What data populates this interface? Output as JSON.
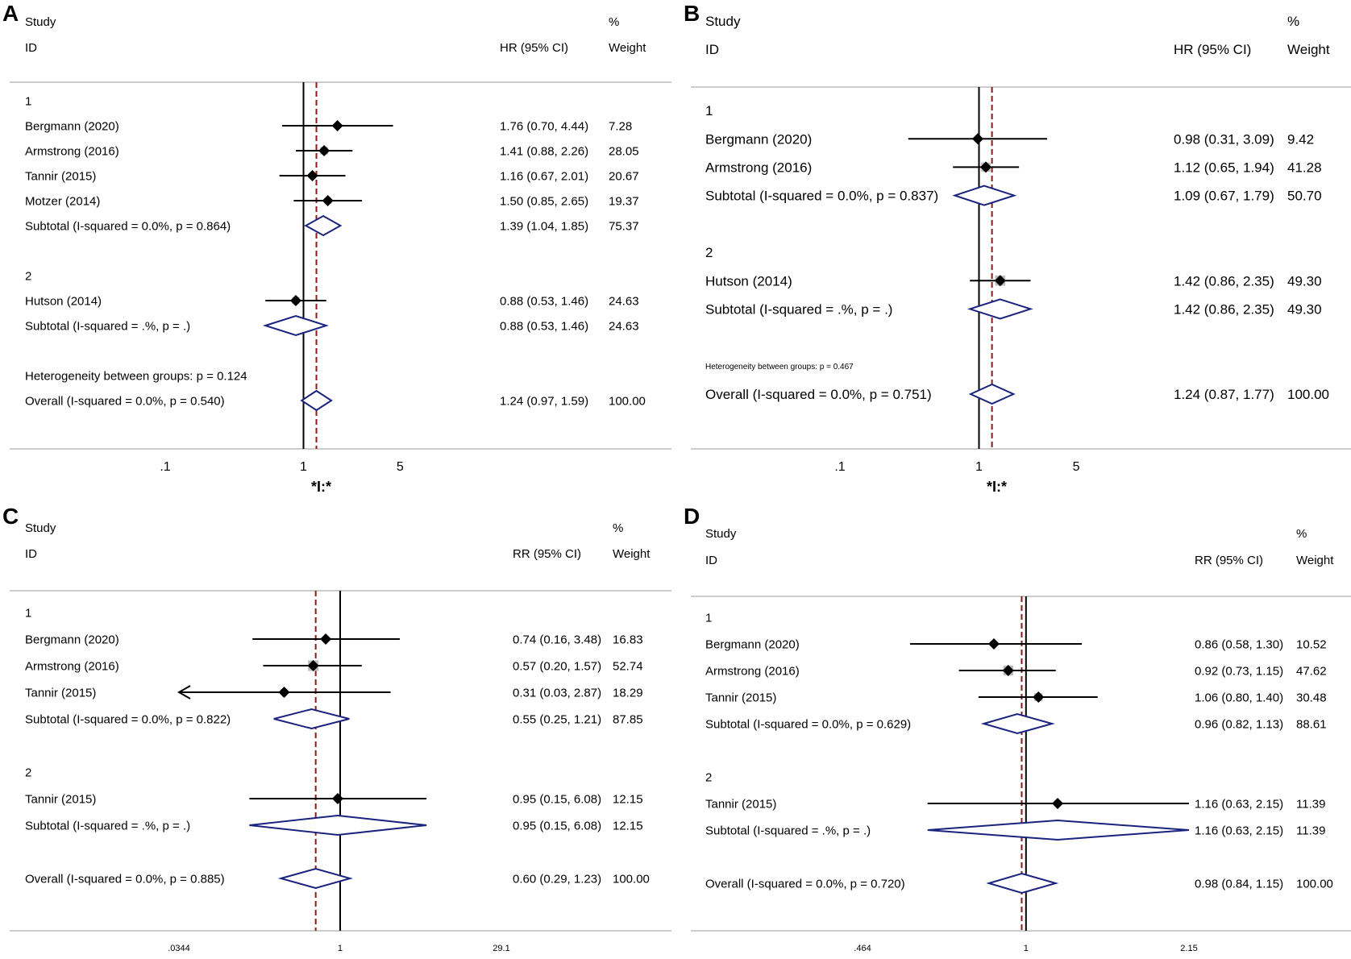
{
  "chart_data": [
    {
      "type": "forest",
      "panel": "A",
      "header": {
        "study": "Study",
        "id": "ID",
        "measure": "HR (95% CI)",
        "pct": "%",
        "weight": "Weight"
      },
      "rows": [
        {
          "kind": "group",
          "label": "1"
        },
        {
          "kind": "study",
          "label": "Bergmann (2020)",
          "est": 1.76,
          "lo": 0.7,
          "hi": 4.44,
          "text": "1.76 (0.70, 4.44)",
          "weight": "7.28"
        },
        {
          "kind": "study",
          "label": "Armstrong (2016)",
          "est": 1.41,
          "lo": 0.88,
          "hi": 2.26,
          "text": "1.41 (0.88, 2.26)",
          "weight": "28.05"
        },
        {
          "kind": "study",
          "label": "Tannir (2015)",
          "est": 1.16,
          "lo": 0.67,
          "hi": 2.01,
          "text": "1.16 (0.67, 2.01)",
          "weight": "20.67"
        },
        {
          "kind": "study",
          "label": "Motzer (2014)",
          "est": 1.5,
          "lo": 0.85,
          "hi": 2.65,
          "text": "1.50 (0.85, 2.65)",
          "weight": "19.37"
        },
        {
          "kind": "subtotal",
          "label": "Subtotal  (I-squared = 0.0%, p = 0.864)",
          "est": 1.39,
          "lo": 1.04,
          "hi": 1.85,
          "text": "1.39 (1.04, 1.85)",
          "weight": "75.37"
        },
        {
          "kind": "blank"
        },
        {
          "kind": "group",
          "label": "2"
        },
        {
          "kind": "study",
          "label": "Hutson (2014)",
          "est": 0.88,
          "lo": 0.53,
          "hi": 1.46,
          "text": "0.88 (0.53, 1.46)",
          "weight": "24.63"
        },
        {
          "kind": "subtotal",
          "label": "Subtotal  (I-squared = .%, p = .)",
          "est": 0.88,
          "lo": 0.53,
          "hi": 1.46,
          "text": "0.88 (0.53, 1.46)",
          "weight": "24.63"
        },
        {
          "kind": "blank"
        },
        {
          "kind": "note",
          "label": "Heterogeneity between groups: p = 0.124"
        },
        {
          "kind": "overall",
          "label": "Overall  (I-squared = 0.0%, p = 0.540)",
          "est": 1.24,
          "lo": 0.97,
          "hi": 1.59,
          "text": "1.24 (0.97, 1.59)",
          "weight": "100.00"
        }
      ],
      "xscale": "log",
      "xlim": [
        0.1,
        10
      ],
      "xticks": [
        {
          "v": 0.1,
          "label": ".1"
        },
        {
          "v": 1,
          "label": "1"
        },
        {
          "v": 5,
          "label": "5"
        }
      ],
      "null_line": 1,
      "pooled": 1.24,
      "xlabel": "*I:*"
    },
    {
      "type": "forest",
      "panel": "B",
      "header": {
        "study": "Study",
        "id": "ID",
        "measure": "HR (95% CI)",
        "pct": "%",
        "weight": "Weight"
      },
      "rows": [
        {
          "kind": "group",
          "label": "1"
        },
        {
          "kind": "study",
          "label": "Bergmann (2020)",
          "est": 0.98,
          "lo": 0.31,
          "hi": 3.09,
          "text": "0.98 (0.31, 3.09)",
          "weight": "9.42"
        },
        {
          "kind": "study",
          "label": "Armstrong (2016)",
          "est": 1.12,
          "lo": 0.65,
          "hi": 1.94,
          "text": "1.12 (0.65, 1.94)",
          "weight": "41.28"
        },
        {
          "kind": "subtotal",
          "label": "Subtotal  (I-squared = 0.0%, p = 0.837)",
          "est": 1.09,
          "lo": 0.67,
          "hi": 1.79,
          "text": "1.09 (0.67, 1.79)",
          "weight": "50.70"
        },
        {
          "kind": "blank"
        },
        {
          "kind": "group",
          "label": "2"
        },
        {
          "kind": "study",
          "label": "Hutson (2014)",
          "est": 1.42,
          "lo": 0.86,
          "hi": 2.35,
          "text": "1.42 (0.86, 2.35)",
          "weight": "49.30"
        },
        {
          "kind": "subtotal",
          "label": "Subtotal  (I-squared = .%, p = .)",
          "est": 1.42,
          "lo": 0.86,
          "hi": 2.35,
          "text": "1.42 (0.86, 2.35)",
          "weight": "49.30"
        },
        {
          "kind": "blank"
        },
        {
          "kind": "note",
          "label": "Heterogeneity between groups: p = 0.467"
        },
        {
          "kind": "overall",
          "label": "Overall  (I-squared = 0.0%, p = 0.751)",
          "est": 1.24,
          "lo": 0.87,
          "hi": 1.77,
          "text": "1.24 (0.87, 1.77)",
          "weight": "100.00"
        }
      ],
      "xscale": "log",
      "xlim": [
        0.1,
        10
      ],
      "xticks": [
        {
          "v": 0.1,
          "label": ".1"
        },
        {
          "v": 1,
          "label": "1"
        },
        {
          "v": 5,
          "label": "5"
        }
      ],
      "null_line": 1,
      "pooled": 1.24,
      "xlabel": "*I:*"
    },
    {
      "type": "forest",
      "panel": "C",
      "header": {
        "study": "Study",
        "id": "ID",
        "measure": "RR (95% CI)",
        "pct": "%",
        "weight": "Weight"
      },
      "rows": [
        {
          "kind": "group",
          "label": "1"
        },
        {
          "kind": "study",
          "label": "Bergmann (2020)",
          "est": 0.74,
          "lo": 0.16,
          "hi": 3.48,
          "text": "0.74 (0.16, 3.48)",
          "weight": "16.83"
        },
        {
          "kind": "study",
          "label": "Armstrong (2016)",
          "est": 0.57,
          "lo": 0.2,
          "hi": 1.57,
          "text": "0.57 (0.20, 1.57)",
          "weight": "52.74"
        },
        {
          "kind": "study",
          "label": "Tannir (2015)",
          "est": 0.31,
          "lo": 0.03,
          "hi": 2.87,
          "text": "0.31 (0.03, 2.87)",
          "weight": "18.29"
        },
        {
          "kind": "subtotal",
          "label": "Subtotal  (I-squared = 0.0%, p = 0.822)",
          "est": 0.55,
          "lo": 0.25,
          "hi": 1.21,
          "text": "0.55 (0.25, 1.21)",
          "weight": "87.85"
        },
        {
          "kind": "blank"
        },
        {
          "kind": "group",
          "label": "2"
        },
        {
          "kind": "study",
          "label": "Tannir (2015)",
          "est": 0.95,
          "lo": 0.15,
          "hi": 6.08,
          "text": "0.95 (0.15, 6.08)",
          "weight": "12.15"
        },
        {
          "kind": "subtotal",
          "label": "Subtotal  (I-squared = .%, p = .)",
          "est": 0.95,
          "lo": 0.15,
          "hi": 6.08,
          "text": "0.95 (0.15, 6.08)",
          "weight": "12.15"
        },
        {
          "kind": "blank"
        },
        {
          "kind": "overall",
          "label": "Overall  (I-squared = 0.0%, p = 0.885)",
          "est": 0.6,
          "lo": 0.29,
          "hi": 1.23,
          "text": "0.60 (0.29, 1.23)",
          "weight": "100.00"
        }
      ],
      "xscale": "log",
      "xlim": [
        0.0344,
        29.1
      ],
      "xticks": [
        {
          "v": 0.0344,
          "label": ".0344"
        },
        {
          "v": 1,
          "label": "1"
        },
        {
          "v": 29.1,
          "label": "29.1"
        }
      ],
      "null_line": 1,
      "pooled": 0.6
    },
    {
      "type": "forest",
      "panel": "D",
      "header": {
        "study": "Study",
        "id": "ID",
        "measure": "RR (95% CI)",
        "pct": "%",
        "weight": "Weight"
      },
      "rows": [
        {
          "kind": "group",
          "label": "1"
        },
        {
          "kind": "study",
          "label": "Bergmann (2020)",
          "est": 0.86,
          "lo": 0.58,
          "hi": 1.3,
          "text": "0.86 (0.58, 1.30)",
          "weight": "10.52"
        },
        {
          "kind": "study",
          "label": "Armstrong (2016)",
          "est": 0.92,
          "lo": 0.73,
          "hi": 1.15,
          "text": "0.92 (0.73, 1.15)",
          "weight": "47.62"
        },
        {
          "kind": "study",
          "label": "Tannir (2015)",
          "est": 1.06,
          "lo": 0.8,
          "hi": 1.4,
          "text": "1.06 (0.80, 1.40)",
          "weight": "30.48"
        },
        {
          "kind": "subtotal",
          "label": "Subtotal  (I-squared = 0.0%, p = 0.629)",
          "est": 0.96,
          "lo": 0.82,
          "hi": 1.13,
          "text": "0.96 (0.82, 1.13)",
          "weight": "88.61"
        },
        {
          "kind": "blank"
        },
        {
          "kind": "group",
          "label": "2"
        },
        {
          "kind": "study",
          "label": "Tannir (2015)",
          "est": 1.16,
          "lo": 0.63,
          "hi": 2.15,
          "text": "1.16 (0.63, 2.15)",
          "weight": "11.39"
        },
        {
          "kind": "subtotal",
          "label": "Subtotal  (I-squared = .%, p = .)",
          "est": 1.16,
          "lo": 0.63,
          "hi": 2.15,
          "text": "1.16 (0.63, 2.15)",
          "weight": "11.39"
        },
        {
          "kind": "blank"
        },
        {
          "kind": "overall",
          "label": "Overall  (I-squared = 0.0%, p = 0.720)",
          "est": 0.98,
          "lo": 0.84,
          "hi": 1.15,
          "text": "0.98 (0.84, 1.15)",
          "weight": "100.00"
        }
      ],
      "xscale": "log",
      "xlim": [
        0.464,
        2.15
      ],
      "xticks": [
        {
          "v": 0.464,
          "label": ".464"
        },
        {
          "v": 1,
          "label": "1"
        },
        {
          "v": 2.15,
          "label": "2.15"
        }
      ],
      "null_line": 1,
      "pooled": 0.98
    }
  ],
  "colors": {
    "diamond": "#1a237e",
    "pooled_line": "#8b1a1a",
    "weight_box": "#bdbdbd",
    "axis": "#000000"
  }
}
